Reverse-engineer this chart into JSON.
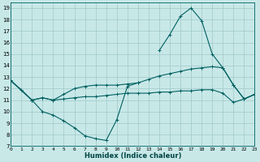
{
  "xlabel": "Humidex (Indice chaleur)",
  "bg_color": "#c8e8e8",
  "line_color": "#006060",
  "grid_color": "#a0c8c8",
  "xlim": [
    0,
    23
  ],
  "ylim": [
    7,
    19.5
  ],
  "xtick_vals": [
    0,
    1,
    2,
    3,
    4,
    5,
    6,
    7,
    8,
    9,
    10,
    11,
    12,
    13,
    14,
    15,
    16,
    17,
    18,
    19,
    20,
    21,
    22,
    23
  ],
  "ytick_vals": [
    7,
    8,
    9,
    10,
    11,
    12,
    13,
    14,
    15,
    16,
    17,
    18,
    19
  ],
  "line1_x": [
    0,
    1,
    2,
    3,
    4,
    5,
    6,
    7,
    8,
    9,
    10,
    11,
    12,
    13,
    14,
    15,
    16,
    17,
    18,
    19,
    20,
    21,
    22,
    23
  ],
  "line1_y": [
    12.7,
    11.9,
    11.0,
    10.0,
    9.7,
    9.2,
    8.6,
    7.9,
    7.65,
    7.5,
    9.3,
    12.2,
    12.5,
    null,
    15.3,
    16.7,
    18.3,
    19.0,
    17.9,
    15.0,
    13.8,
    12.3,
    11.1,
    11.5
  ],
  "line2_x": [
    0,
    2,
    3,
    4,
    5,
    6,
    7,
    8,
    9,
    10,
    11,
    12,
    13,
    14,
    15,
    16,
    17,
    18,
    19,
    20,
    21,
    22,
    23
  ],
  "line2_y": [
    12.7,
    11.0,
    11.2,
    11.0,
    11.1,
    11.2,
    11.3,
    11.3,
    11.4,
    11.5,
    11.6,
    11.6,
    11.6,
    11.7,
    11.7,
    11.8,
    11.8,
    11.9,
    11.9,
    11.6,
    10.8,
    11.1,
    11.5
  ],
  "line3_x": [
    0,
    2,
    3,
    4,
    5,
    6,
    7,
    8,
    9,
    10,
    11,
    12,
    13,
    14,
    15,
    16,
    17,
    18,
    19,
    20,
    21,
    22,
    23
  ],
  "line3_y": [
    12.7,
    11.0,
    11.2,
    11.0,
    11.5,
    12.0,
    12.2,
    12.3,
    12.3,
    12.3,
    12.4,
    12.5,
    12.8,
    13.1,
    13.3,
    13.5,
    13.7,
    13.8,
    13.9,
    13.8,
    12.3,
    11.1,
    11.5
  ]
}
